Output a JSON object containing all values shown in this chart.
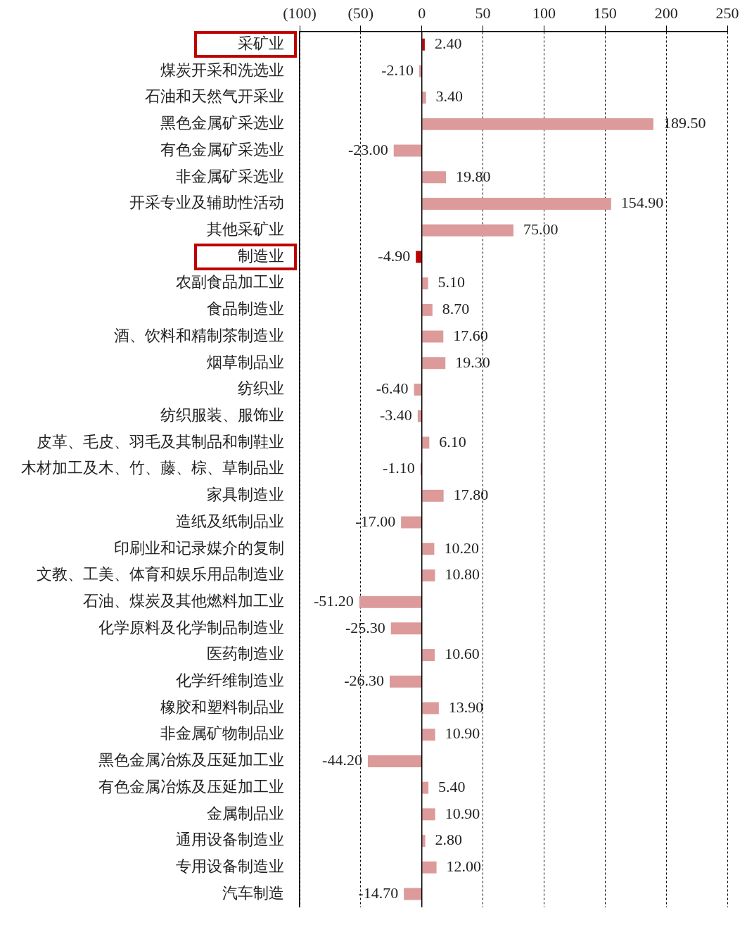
{
  "chart_data": {
    "type": "bar",
    "orientation": "horizontal",
    "categories": [
      "采矿业",
      "煤炭开采和洗选业",
      "石油和天然气开采业",
      "黑色金属矿采选业",
      "有色金属矿采选业",
      "非金属矿采选业",
      "开采专业及辅助性活动",
      "其他采矿业",
      "制造业",
      "农副食品加工业",
      "食品制造业",
      "酒、饮料和精制茶制造业",
      "烟草制品业",
      "纺织业",
      "纺织服装、服饰业",
      "皮革、毛皮、羽毛及其制品和制鞋业",
      "木材加工及木、竹、藤、棕、草制品业",
      "家具制造业",
      "造纸及纸制品业",
      "印刷业和记录媒介的复制",
      "文教、工美、体育和娱乐用品制造业",
      "石油、煤炭及其他燃料加工业",
      "化学原料及化学制品制造业",
      "医药制造业",
      "化学纤维制造业",
      "橡胶和塑料制品业",
      "非金属矿物制品业",
      "黑色金属冶炼及压延加工业",
      "有色金属冶炼及压延加工业",
      "金属制品业",
      "通用设备制造业",
      "专用设备制造业",
      "汽车制造"
    ],
    "values": [
      2.4,
      -2.1,
      3.4,
      189.5,
      -23,
      19.8,
      154.9,
      75,
      -4.9,
      5.1,
      8.7,
      17.6,
      19.3,
      -6.4,
      -3.4,
      6.1,
      -1.1,
      17.8,
      -17,
      10.2,
      10.8,
      -51.2,
      -25.3,
      10.6,
      -26.3,
      13.9,
      10.9,
      -44.2,
      5.4,
      10.9,
      2.8,
      12,
      -14.7
    ],
    "value_labels": [
      "2.40",
      "-2.10",
      "3.40",
      "189.50",
      "-23.00",
      "19.80",
      "154.90",
      "75.00",
      "-4.90",
      "5.10",
      "8.70",
      "17.60",
      "19.30",
      "-6.40",
      "-3.40",
      "6.10",
      "-1.10",
      "17.80",
      "-17.00",
      "10.20",
      "10.80",
      "-51.20",
      "-25.30",
      "10.60",
      "-26.30",
      "13.90",
      "10.90",
      "-44.20",
      "5.40",
      "10.90",
      "2.80",
      "12.00",
      "-14.70"
    ],
    "colors": [
      "#c00000",
      "#dc9a9a",
      "#dc9a9a",
      "#dc9a9a",
      "#dc9a9a",
      "#dc9a9a",
      "#dc9a9a",
      "#dc9a9a",
      "#c00000",
      "#dc9a9a",
      "#dc9a9a",
      "#dc9a9a",
      "#dc9a9a",
      "#dc9a9a",
      "#dc9a9a",
      "#dc9a9a",
      "#dc9a9a",
      "#dc9a9a",
      "#dc9a9a",
      "#dc9a9a",
      "#dc9a9a",
      "#dc9a9a",
      "#dc9a9a",
      "#dc9a9a",
      "#dc9a9a",
      "#dc9a9a",
      "#dc9a9a",
      "#dc9a9a",
      "#dc9a9a",
      "#dc9a9a",
      "#dc9a9a",
      "#dc9a9a",
      "#dc9a9a"
    ],
    "xlim": [
      -100,
      250
    ],
    "xticks": [
      {
        "value": -100,
        "label": "(100)"
      },
      {
        "value": -50,
        "label": "(50)"
      },
      0,
      50,
      100,
      150,
      200,
      250
    ],
    "grid": "x",
    "legend": false
  }
}
